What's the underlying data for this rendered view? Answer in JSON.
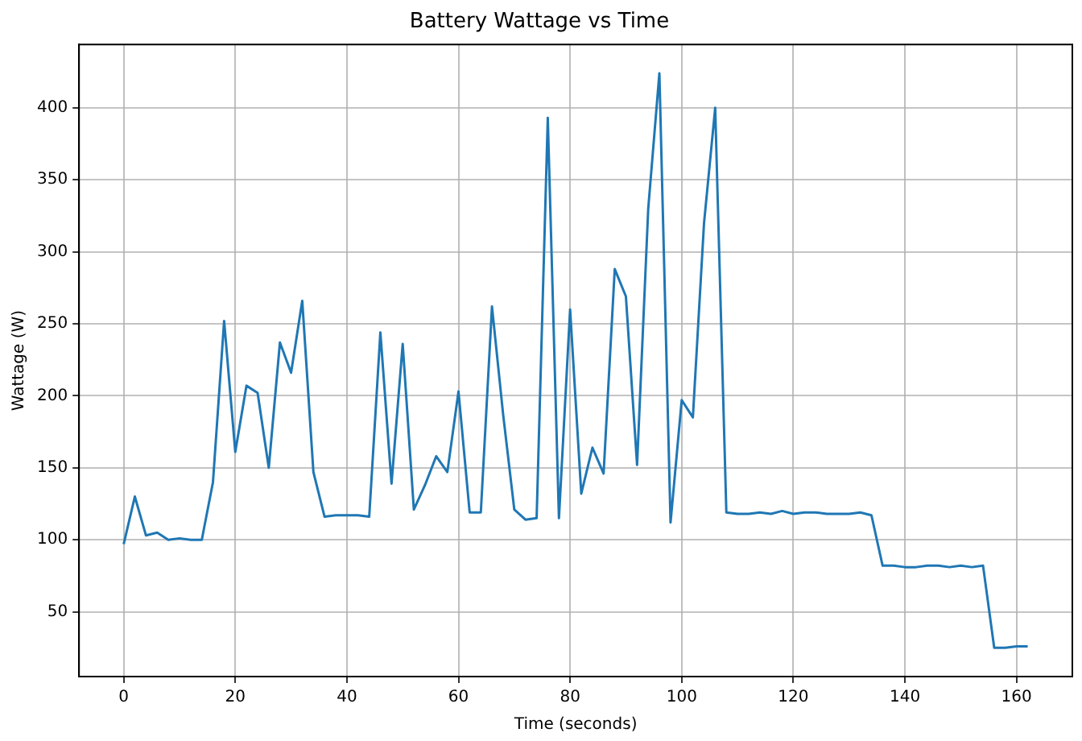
{
  "chart_data": {
    "type": "line",
    "title": "Battery Wattage vs Time",
    "xlabel": "Time (seconds)",
    "ylabel": "Wattage (W)",
    "x": [
      0,
      2,
      4,
      6,
      8,
      10,
      12,
      14,
      16,
      18,
      20,
      22,
      24,
      26,
      28,
      30,
      32,
      34,
      36,
      38,
      40,
      42,
      44,
      46,
      48,
      50,
      52,
      54,
      56,
      58,
      60,
      62,
      64,
      66,
      68,
      70,
      72,
      74,
      76,
      78,
      80,
      82,
      84,
      86,
      88,
      90,
      92,
      94,
      96,
      98,
      100,
      102,
      104,
      106,
      108,
      110,
      112,
      114,
      116,
      118,
      120,
      122,
      124,
      126,
      128,
      130,
      132,
      134,
      136,
      138,
      140,
      142,
      144,
      146,
      148,
      150,
      152,
      154,
      156,
      158,
      160,
      162
    ],
    "series": [
      {
        "color": "#1f77b4",
        "values": [
          97,
          130,
          103,
          105,
          100,
          101,
          100,
          100,
          140,
          252,
          161,
          207,
          202,
          150,
          237,
          216,
          266,
          147,
          116,
          117,
          117,
          117,
          116,
          244,
          139,
          236,
          121,
          138,
          158,
          147,
          203,
          119,
          119,
          262,
          187,
          121,
          114,
          115,
          393,
          115,
          260,
          132,
          164,
          146,
          288,
          269,
          152,
          330,
          424,
          112,
          197,
          185,
          320,
          400,
          119,
          118,
          118,
          119,
          118,
          120,
          118,
          119,
          119,
          118,
          118,
          118,
          119,
          117,
          82,
          82,
          81,
          81,
          82,
          82,
          81,
          82,
          81,
          82,
          25,
          25,
          26,
          26
        ]
      }
    ],
    "xlim": [
      -8,
      170
    ],
    "ylim": [
      5,
      444
    ],
    "xticks": [
      0,
      20,
      40,
      60,
      80,
      100,
      120,
      140,
      160
    ],
    "yticks": [
      50,
      100,
      150,
      200,
      250,
      300,
      350,
      400
    ],
    "grid": true,
    "marker": "none",
    "line_style": "solid"
  }
}
